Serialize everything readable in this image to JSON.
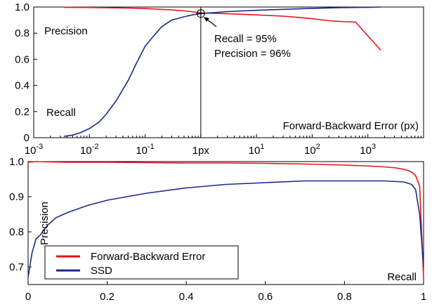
{
  "chart_data": [
    {
      "type": "line",
      "x_scale": "log",
      "xlim": [
        0.001,
        10000
      ],
      "ylim": [
        0,
        1
      ],
      "grid": false,
      "xlabel": "Forward-Backward Error (px)",
      "ylabel": "",
      "x_tick_labels": [
        {
          "base": "10",
          "exp": "-3",
          "value": 0.001
        },
        {
          "base": "10",
          "exp": "-2",
          "value": 0.01
        },
        {
          "base": "10",
          "exp": "-1",
          "value": 0.1
        },
        {
          "text": "1px",
          "value": 1
        },
        {
          "base": "10",
          "exp": "1",
          "value": 10
        },
        {
          "base": "10",
          "exp": "2",
          "value": 100
        },
        {
          "base": "10",
          "exp": "3",
          "value": 1000
        }
      ],
      "y_tick_labels": [
        {
          "text": "0",
          "value": 0
        },
        {
          "text": "0.2",
          "value": 0.2
        },
        {
          "text": "0.4",
          "value": 0.4
        },
        {
          "text": "0.6",
          "value": 0.6
        },
        {
          "text": "0.8",
          "value": 0.8
        },
        {
          "text": "1.0",
          "value": 1.0
        }
      ],
      "series": [
        {
          "name": "Precision",
          "color": "#e8141b",
          "x": [
            0.0035,
            0.01,
            0.05,
            0.1,
            0.3,
            0.6,
            1,
            2,
            5,
            10,
            30,
            60,
            100,
            200,
            400,
            600,
            1700
          ],
          "y": [
            0.998,
            0.996,
            0.992,
            0.988,
            0.978,
            0.968,
            0.955,
            0.951,
            0.945,
            0.94,
            0.93,
            0.92,
            0.91,
            0.895,
            0.887,
            0.885,
            0.67
          ]
        },
        {
          "name": "Recall",
          "color": "#1c2a8a",
          "x": [
            0.0035,
            0.005,
            0.007,
            0.01,
            0.015,
            0.02,
            0.03,
            0.05,
            0.07,
            0.1,
            0.15,
            0.2,
            0.3,
            0.5,
            0.7,
            1,
            3,
            10,
            30,
            100,
            300,
            1000,
            1700
          ],
          "y": [
            0.01,
            0.02,
            0.04,
            0.07,
            0.12,
            0.18,
            0.28,
            0.44,
            0.57,
            0.7,
            0.79,
            0.85,
            0.9,
            0.925,
            0.94,
            0.95,
            0.965,
            0.975,
            0.982,
            0.99,
            0.995,
            0.998,
            1.0
          ]
        }
      ],
      "annotations": {
        "precision_label": "Precision",
        "recall_label": "Recall",
        "point_x": 1,
        "point_y": 0.95,
        "recall_text": "Recall = 95%",
        "precision_text": "Precision = 96%"
      }
    },
    {
      "type": "line",
      "xlim": [
        0,
        1
      ],
      "ylim": [
        0.65,
        1.0
      ],
      "grid": false,
      "xlabel": "Recall",
      "ylabel": "Precision",
      "legend_position": "bottom-left",
      "x_tick_labels": [
        {
          "text": "0",
          "value": 0
        },
        {
          "text": "0.2",
          "value": 0.2
        },
        {
          "text": "0.4",
          "value": 0.4
        },
        {
          "text": "0.6",
          "value": 0.6
        },
        {
          "text": "0.8",
          "value": 0.8
        },
        {
          "text": "1",
          "value": 1
        }
      ],
      "y_tick_labels": [
        {
          "text": "0.7",
          "value": 0.7
        },
        {
          "text": "0.8",
          "value": 0.8
        },
        {
          "text": "0.9",
          "value": 0.9
        },
        {
          "text": "1.0",
          "value": 1.0
        }
      ],
      "series": [
        {
          "name": "Forward-Backward Error",
          "color": "#e8141b",
          "x": [
            0.0,
            0.02,
            0.05,
            0.1,
            0.2,
            0.3,
            0.4,
            0.5,
            0.6,
            0.7,
            0.8,
            0.85,
            0.9,
            0.93,
            0.95,
            0.96,
            0.97,
            0.98,
            0.99,
            1.0
          ],
          "y": [
            0.998,
            1.0,
            0.999,
            0.998,
            0.998,
            0.997,
            0.996,
            0.996,
            0.995,
            0.993,
            0.99,
            0.988,
            0.985,
            0.982,
            0.978,
            0.975,
            0.97,
            0.96,
            0.93,
            0.67
          ]
        },
        {
          "name": "SSD",
          "color": "#1c2a8a",
          "x": [
            0.0,
            0.01,
            0.02,
            0.03,
            0.05,
            0.07,
            0.1,
            0.15,
            0.2,
            0.3,
            0.4,
            0.5,
            0.6,
            0.7,
            0.8,
            0.9,
            0.95,
            0.97,
            0.98,
            0.99,
            1.0
          ],
          "y": [
            0.67,
            0.74,
            0.78,
            0.79,
            0.82,
            0.84,
            0.855,
            0.875,
            0.89,
            0.91,
            0.925,
            0.935,
            0.94,
            0.945,
            0.945,
            0.945,
            0.942,
            0.935,
            0.92,
            0.85,
            0.7
          ]
        }
      ]
    }
  ]
}
